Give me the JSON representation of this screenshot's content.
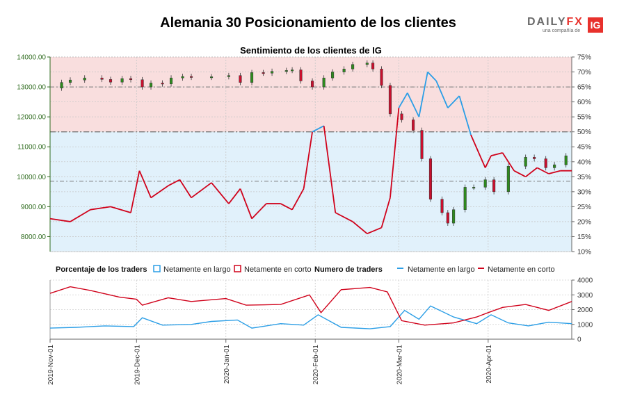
{
  "header": {
    "title": "Alemania 30 Posicionamiento de los clientes",
    "logo_main_a": "DAILY",
    "logo_main_b": "FX",
    "logo_sub": "una compañía de",
    "logo_badge": "IG"
  },
  "colors": {
    "long": "#2b9ee6",
    "short": "#d0021b",
    "candle_up": "#2e8b1e",
    "candle_down": "#c8102e",
    "short_zone": "#f9dede",
    "long_zone": "#e1f1fb",
    "left_axis": "#2e6b1e"
  },
  "chart_data": [
    {
      "type": "line",
      "title": "Sentimiento de los clientes de IG",
      "left_axis": {
        "ylim": [
          7500,
          14000
        ],
        "ticks": [
          "14000.00",
          "13000.00",
          "12000.00",
          "11000.00",
          "10000.00",
          "9000.00",
          "8000.00"
        ]
      },
      "right_axis": {
        "ylim": [
          10,
          75
        ],
        "ticks": [
          "75%",
          "70%",
          "65%",
          "60%",
          "55%",
          "50%",
          "45%",
          "40%",
          "35%",
          "30%",
          "25%",
          "20%",
          "15%",
          "10%"
        ]
      },
      "x_ticks": [
        "2019-Nov-01",
        "2019-Dec-01",
        "2020-Jan-01",
        "2020-Feb-01",
        "2020-Mar-01",
        "2020-Apr-01"
      ],
      "grid": true,
      "reference_lines_pct": [
        65,
        50,
        33.5
      ],
      "price_close_series": [
        {
          "date": "2019-11-01",
          "close": 12960
        },
        {
          "date": "2019-11-05",
          "close": 13150
        },
        {
          "date": "2019-11-08",
          "close": 13230
        },
        {
          "date": "2019-11-13",
          "close": 13300
        },
        {
          "date": "2019-11-19",
          "close": 13250
        },
        {
          "date": "2019-11-22",
          "close": 13160
        },
        {
          "date": "2019-11-26",
          "close": 13280
        },
        {
          "date": "2019-11-29",
          "close": 13240
        },
        {
          "date": "2019-12-03",
          "close": 13000
        },
        {
          "date": "2019-12-06",
          "close": 13130
        },
        {
          "date": "2019-12-10",
          "close": 13100
        },
        {
          "date": "2019-12-13",
          "close": 13300
        },
        {
          "date": "2019-12-17",
          "close": 13350
        },
        {
          "date": "2019-12-20",
          "close": 13320
        },
        {
          "date": "2019-12-27",
          "close": 13340
        },
        {
          "date": "2020-01-02",
          "close": 13380
        },
        {
          "date": "2020-01-06",
          "close": 13150
        },
        {
          "date": "2020-01-10",
          "close": 13480
        },
        {
          "date": "2020-01-14",
          "close": 13460
        },
        {
          "date": "2020-01-17",
          "close": 13520
        },
        {
          "date": "2020-01-22",
          "close": 13550
        },
        {
          "date": "2020-01-24",
          "close": 13570
        },
        {
          "date": "2020-01-27",
          "close": 13200
        },
        {
          "date": "2020-01-31",
          "close": 13000
        },
        {
          "date": "2020-02-04",
          "close": 13300
        },
        {
          "date": "2020-02-07",
          "close": 13500
        },
        {
          "date": "2020-02-11",
          "close": 13600
        },
        {
          "date": "2020-02-14",
          "close": 13750
        },
        {
          "date": "2020-02-19",
          "close": 13800
        },
        {
          "date": "2020-02-21",
          "close": 13600
        },
        {
          "date": "2020-02-24",
          "close": 13050
        },
        {
          "date": "2020-02-27",
          "close": 12100
        },
        {
          "date": "2020-03-02",
          "close": 11900
        },
        {
          "date": "2020-03-06",
          "close": 11550
        },
        {
          "date": "2020-03-09",
          "close": 10600
        },
        {
          "date": "2020-03-12",
          "close": 9250
        },
        {
          "date": "2020-03-16",
          "close": 8800
        },
        {
          "date": "2020-03-18",
          "close": 8450
        },
        {
          "date": "2020-03-20",
          "close": 8900
        },
        {
          "date": "2020-03-24",
          "close": 9650
        },
        {
          "date": "2020-03-27",
          "close": 9650
        },
        {
          "date": "2020-03-31",
          "close": 9900
        },
        {
          "date": "2020-04-03",
          "close": 9500
        },
        {
          "date": "2020-04-08",
          "close": 10350
        },
        {
          "date": "2020-04-14",
          "close": 10650
        },
        {
          "date": "2020-04-17",
          "close": 10600
        },
        {
          "date": "2020-04-21",
          "close": 10300
        },
        {
          "date": "2020-04-24",
          "close": 10400
        },
        {
          "date": "2020-04-28",
          "close": 10700
        }
      ],
      "net_long_pct": [
        {
          "date": "2019-11-01",
          "value": 21
        },
        {
          "date": "2019-11-08",
          "value": 20
        },
        {
          "date": "2019-11-15",
          "value": 24
        },
        {
          "date": "2019-11-22",
          "value": 25
        },
        {
          "date": "2019-11-29",
          "value": 23
        },
        {
          "date": "2019-12-02",
          "value": 37
        },
        {
          "date": "2019-12-06",
          "value": 28
        },
        {
          "date": "2019-12-12",
          "value": 32
        },
        {
          "date": "2019-12-16",
          "value": 34
        },
        {
          "date": "2019-12-20",
          "value": 28
        },
        {
          "date": "2019-12-27",
          "value": 33
        },
        {
          "date": "2020-01-02",
          "value": 26
        },
        {
          "date": "2020-01-06",
          "value": 31
        },
        {
          "date": "2020-01-10",
          "value": 21
        },
        {
          "date": "2020-01-15",
          "value": 26
        },
        {
          "date": "2020-01-20",
          "value": 26
        },
        {
          "date": "2020-01-24",
          "value": 24
        },
        {
          "date": "2020-01-28",
          "value": 31
        },
        {
          "date": "2020-01-31",
          "value": 50
        },
        {
          "date": "2020-02-04",
          "value": 52
        },
        {
          "date": "2020-02-08",
          "value": 23
        },
        {
          "date": "2020-02-14",
          "value": 20
        },
        {
          "date": "2020-02-19",
          "value": 16
        },
        {
          "date": "2020-02-24",
          "value": 18
        },
        {
          "date": "2020-02-27",
          "value": 28
        },
        {
          "date": "2020-03-01",
          "value": 58
        },
        {
          "date": "2020-03-04",
          "value": 63
        },
        {
          "date": "2020-03-08",
          "value": 55
        },
        {
          "date": "2020-03-11",
          "value": 70
        },
        {
          "date": "2020-03-14",
          "value": 67
        },
        {
          "date": "2020-03-18",
          "value": 58
        },
        {
          "date": "2020-03-22",
          "value": 62
        },
        {
          "date": "2020-03-26",
          "value": 49
        },
        {
          "date": "2020-03-31",
          "value": 38
        },
        {
          "date": "2020-04-02",
          "value": 42
        },
        {
          "date": "2020-04-06",
          "value": 43
        },
        {
          "date": "2020-04-10",
          "value": 37
        },
        {
          "date": "2020-04-14",
          "value": 35
        },
        {
          "date": "2020-04-18",
          "value": 38
        },
        {
          "date": "2020-04-22",
          "value": 36
        },
        {
          "date": "2020-04-26",
          "value": 37
        },
        {
          "date": "2020-04-30",
          "value": 37
        }
      ]
    },
    {
      "type": "line",
      "title": "Porcentaje de los traders",
      "legend": [
        "Porcentaje de los traders",
        "Netamente en largo",
        "Netamente en corto",
        "Numero de traders",
        "Netamente en largo",
        "Netamente en corto"
      ],
      "right_axis": {
        "ylim": [
          0,
          4000
        ],
        "ticks": [
          "4000",
          "3000",
          "2000",
          "1000",
          "0"
        ]
      },
      "series": [
        {
          "name": "Netamente en largo",
          "points": [
            {
              "date": "2019-11-01",
              "value": 750
            },
            {
              "date": "2019-11-10",
              "value": 800
            },
            {
              "date": "2019-11-20",
              "value": 900
            },
            {
              "date": "2019-11-30",
              "value": 850
            },
            {
              "date": "2019-12-03",
              "value": 1450
            },
            {
              "date": "2019-12-10",
              "value": 950
            },
            {
              "date": "2019-12-20",
              "value": 1000
            },
            {
              "date": "2019-12-27",
              "value": 1200
            },
            {
              "date": "2020-01-05",
              "value": 1300
            },
            {
              "date": "2020-01-10",
              "value": 750
            },
            {
              "date": "2020-01-20",
              "value": 1050
            },
            {
              "date": "2020-01-28",
              "value": 950
            },
            {
              "date": "2020-02-02",
              "value": 1650
            },
            {
              "date": "2020-02-10",
              "value": 800
            },
            {
              "date": "2020-02-20",
              "value": 700
            },
            {
              "date": "2020-02-27",
              "value": 850
            },
            {
              "date": "2020-03-03",
              "value": 1950
            },
            {
              "date": "2020-03-08",
              "value": 1350
            },
            {
              "date": "2020-03-12",
              "value": 2250
            },
            {
              "date": "2020-03-20",
              "value": 1500
            },
            {
              "date": "2020-03-28",
              "value": 1050
            },
            {
              "date": "2020-04-02",
              "value": 1650
            },
            {
              "date": "2020-04-08",
              "value": 1100
            },
            {
              "date": "2020-04-15",
              "value": 900
            },
            {
              "date": "2020-04-22",
              "value": 1150
            },
            {
              "date": "2020-04-30",
              "value": 1050
            }
          ]
        },
        {
          "name": "Netamente en corto",
          "points": [
            {
              "date": "2019-11-01",
              "value": 3100
            },
            {
              "date": "2019-11-08",
              "value": 3550
            },
            {
              "date": "2019-11-15",
              "value": 3300
            },
            {
              "date": "2019-11-25",
              "value": 2850
            },
            {
              "date": "2019-12-01",
              "value": 2700
            },
            {
              "date": "2019-12-03",
              "value": 2300
            },
            {
              "date": "2019-12-12",
              "value": 2800
            },
            {
              "date": "2019-12-20",
              "value": 2550
            },
            {
              "date": "2020-01-01",
              "value": 2750
            },
            {
              "date": "2020-01-08",
              "value": 2300
            },
            {
              "date": "2020-01-20",
              "value": 2350
            },
            {
              "date": "2020-01-30",
              "value": 3000
            },
            {
              "date": "2020-02-03",
              "value": 1800
            },
            {
              "date": "2020-02-10",
              "value": 3350
            },
            {
              "date": "2020-02-20",
              "value": 3500
            },
            {
              "date": "2020-02-26",
              "value": 3200
            },
            {
              "date": "2020-03-02",
              "value": 1250
            },
            {
              "date": "2020-03-10",
              "value": 950
            },
            {
              "date": "2020-03-20",
              "value": 1100
            },
            {
              "date": "2020-03-28",
              "value": 1500
            },
            {
              "date": "2020-04-01",
              "value": 1800
            },
            {
              "date": "2020-04-06",
              "value": 2150
            },
            {
              "date": "2020-04-14",
              "value": 2350
            },
            {
              "date": "2020-04-22",
              "value": 1950
            },
            {
              "date": "2020-04-30",
              "value": 2550
            }
          ]
        }
      ]
    }
  ]
}
